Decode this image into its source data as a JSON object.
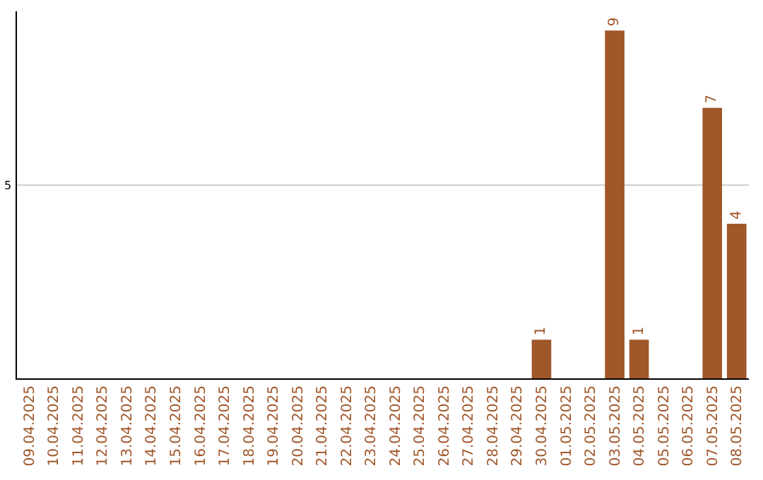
{
  "chart_data": {
    "type": "bar",
    "categories": [
      "09.04.2025",
      "10.04.2025",
      "11.04.2025",
      "12.04.2025",
      "13.04.2025",
      "14.04.2025",
      "15.04.2025",
      "16.04.2025",
      "17.04.2025",
      "18.04.2025",
      "19.04.2025",
      "20.04.2025",
      "21.04.2025",
      "22.04.2025",
      "23.04.2025",
      "24.04.2025",
      "25.04.2025",
      "26.04.2025",
      "27.04.2025",
      "28.04.2025",
      "29.04.2025",
      "30.04.2025",
      "01.05.2025",
      "02.05.2025",
      "03.05.2025",
      "04.05.2025",
      "05.05.2025",
      "06.05.2025",
      "07.05.2025",
      "08.05.2025"
    ],
    "values": [
      null,
      null,
      null,
      null,
      null,
      null,
      null,
      null,
      null,
      null,
      null,
      null,
      null,
      null,
      null,
      null,
      null,
      null,
      null,
      null,
      null,
      1,
      null,
      null,
      9,
      1,
      null,
      null,
      7,
      4
    ],
    "data_labels": true,
    "color": "#a0572a",
    "ylim": [
      0,
      9.5
    ],
    "ref_lines": [
      {
        "axis": "y",
        "value": 5,
        "label": "5",
        "color": "#cccccc"
      }
    ]
  }
}
